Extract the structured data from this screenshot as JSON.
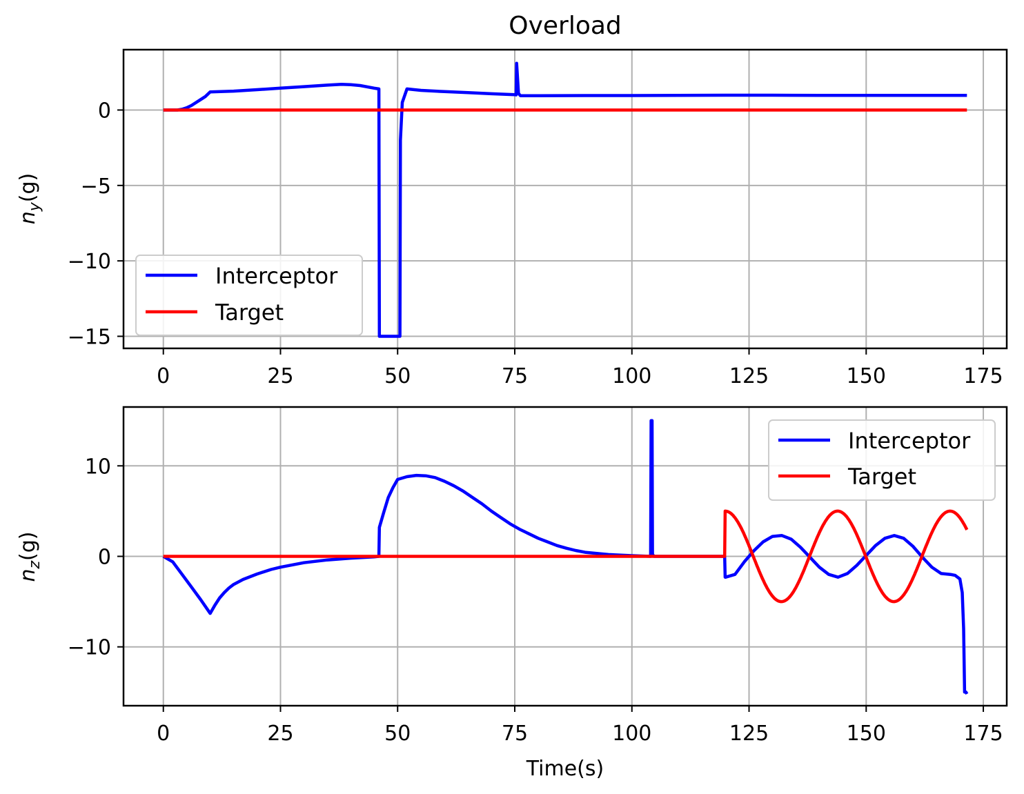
{
  "figure_title": "Overload",
  "chart_data": [
    {
      "type": "line",
      "ylabel_base": "n",
      "ylabel_sub": "y",
      "ylabel_unit": "(g)",
      "xlabel": "",
      "xlim": [
        -8.5,
        180
      ],
      "ylim": [
        -15.8,
        4.0
      ],
      "xticks": [
        0,
        25,
        50,
        75,
        100,
        125,
        150,
        175
      ],
      "yticks": [
        0,
        -5,
        -10,
        -15
      ],
      "ytick_labels": [
        "0",
        "−5",
        "−10",
        "−15"
      ],
      "grid": true,
      "legend_position": "lower-left",
      "series": [
        {
          "name": "Interceptor",
          "color": "#0000ff",
          "x": [
            0,
            3,
            4,
            5,
            6,
            7,
            8,
            9,
            10,
            15,
            20,
            25,
            30,
            35,
            38,
            40,
            42,
            45,
            46,
            46.1,
            50.5,
            50.6,
            51,
            52,
            55,
            60,
            65,
            70,
            75,
            75.3,
            75.4,
            75.8,
            76.2,
            77,
            80,
            90,
            100,
            110,
            120,
            130,
            140,
            150,
            160,
            170,
            171.5
          ],
          "y": [
            0,
            0,
            0.05,
            0.15,
            0.3,
            0.5,
            0.7,
            0.9,
            1.2,
            1.25,
            1.35,
            1.45,
            1.55,
            1.65,
            1.7,
            1.68,
            1.62,
            1.45,
            1.4,
            -15,
            -15,
            -2.0,
            0.5,
            1.4,
            1.3,
            1.22,
            1.15,
            1.08,
            1.02,
            1.0,
            3.1,
            1.1,
            0.95,
            0.95,
            0.95,
            0.96,
            0.96,
            0.97,
            0.98,
            0.98,
            0.97,
            0.97,
            0.97,
            0.97,
            0.97
          ]
        },
        {
          "name": "Target",
          "color": "#ff0000",
          "x": [
            0,
            171.5
          ],
          "y": [
            0,
            0
          ]
        }
      ]
    },
    {
      "type": "line",
      "ylabel_base": "n",
      "ylabel_sub": "z",
      "ylabel_unit": "(g)",
      "xlabel": "Time(s)",
      "xlim": [
        -8.5,
        180
      ],
      "ylim": [
        -16.5,
        16.5
      ],
      "xticks": [
        0,
        25,
        50,
        75,
        100,
        125,
        150,
        175
      ],
      "yticks": [
        10,
        0,
        -10
      ],
      "ytick_labels": [
        "10",
        "0",
        "−10"
      ],
      "grid": true,
      "legend_position": "top-right",
      "series": [
        {
          "name": "Interceptor",
          "color": "#0000ff",
          "x": [
            0,
            2,
            4,
            6,
            8,
            10,
            11,
            12,
            13,
            14,
            15,
            17,
            20,
            23,
            25,
            30,
            35,
            40,
            45,
            46,
            46.1,
            47,
            48,
            49,
            50,
            52,
            54,
            56,
            58,
            60,
            62,
            64,
            66,
            68,
            70,
            72,
            74,
            76,
            78,
            80,
            82,
            84,
            86,
            88,
            90,
            95,
            100,
            104,
            104.1,
            104.3,
            104.4,
            104.6,
            104.7,
            110,
            119.8,
            119.9,
            120,
            122,
            124,
            126,
            128,
            130,
            132,
            134,
            136,
            138,
            140,
            142,
            144,
            146,
            148,
            150,
            152,
            154,
            156,
            158,
            160,
            162,
            164,
            166,
            168,
            169,
            170,
            170.5,
            170.8,
            171,
            171.3,
            171.5
          ],
          "y": [
            0,
            -0.6,
            -2.0,
            -3.4,
            -4.8,
            -6.3,
            -5.4,
            -4.6,
            -4.0,
            -3.5,
            -3.1,
            -2.55,
            -1.95,
            -1.45,
            -1.2,
            -0.7,
            -0.4,
            -0.2,
            -0.05,
            0,
            3.2,
            4.8,
            6.5,
            7.6,
            8.5,
            8.8,
            8.95,
            8.9,
            8.7,
            8.3,
            7.8,
            7.2,
            6.5,
            5.8,
            5.0,
            4.3,
            3.6,
            3.0,
            2.5,
            2.0,
            1.6,
            1.2,
            0.9,
            0.65,
            0.45,
            0.2,
            0.08,
            0,
            15,
            15,
            0.1,
            0.1,
            0,
            0,
            0,
            -2.3,
            -2.3,
            -2.0,
            -0.6,
            0.6,
            1.6,
            2.2,
            2.3,
            1.9,
            1.0,
            -0.1,
            -1.2,
            -2.0,
            -2.3,
            -1.9,
            -1.0,
            0.1,
            1.2,
            2.0,
            2.3,
            2.0,
            1.1,
            -0.1,
            -1.2,
            -1.9,
            -2.0,
            -2.1,
            -2.5,
            -4.0,
            -8.0,
            -15.0,
            -15.0,
            -15.2
          ]
        },
        {
          "name": "Target",
          "color": "#ff0000",
          "x": [
            0,
            119.8,
            119.9,
            171.5
          ],
          "y": [
            0,
            0,
            5.0,
            2.6
          ],
          "sine_segment": {
            "start": 119.9,
            "end": 171.5,
            "amplitude": 5.0,
            "period": 24
          }
        }
      ]
    }
  ]
}
